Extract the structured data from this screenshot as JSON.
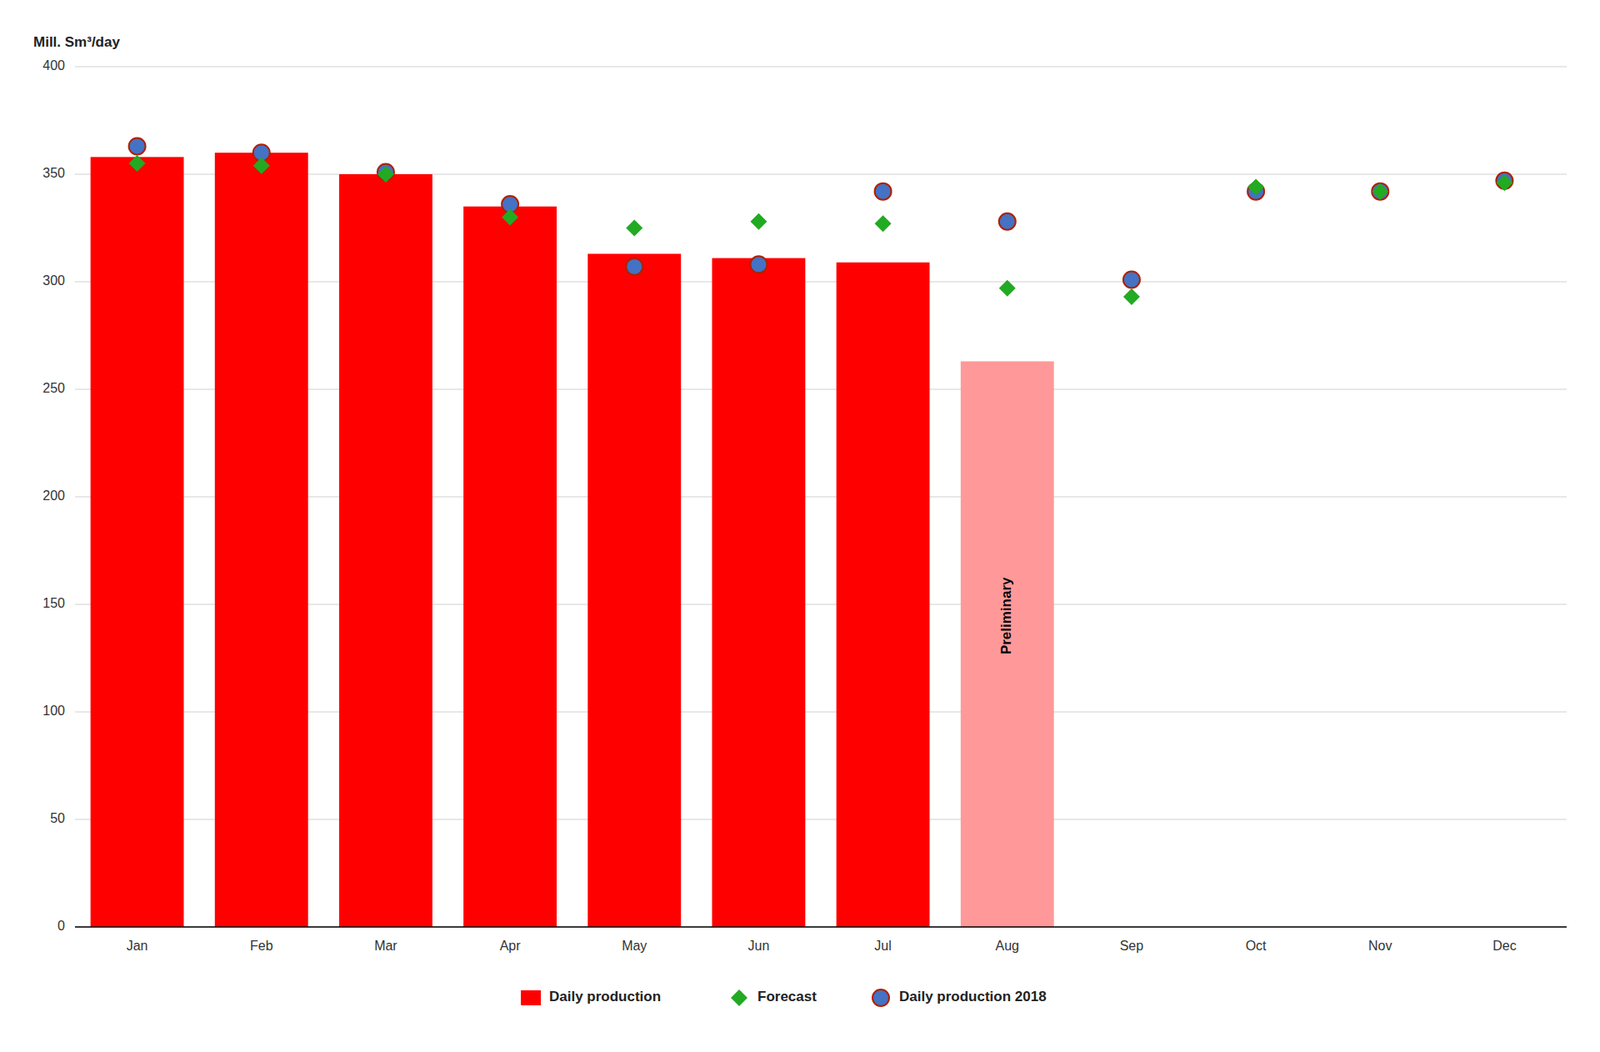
{
  "chart_data": {
    "type": "bar",
    "ylabel": "Mill. Sm³/day",
    "categories": [
      "Jan",
      "Feb",
      "Mar",
      "Apr",
      "May",
      "Jun",
      "Jul",
      "Aug",
      "Sep",
      "Oct",
      "Nov",
      "Dec"
    ],
    "series": [
      {
        "name": "Daily production",
        "type": "bar",
        "color": "#FF0000",
        "colors": [
          "#FF0000",
          "#FF0000",
          "#FF0000",
          "#FF0000",
          "#FF0000",
          "#FF0000",
          "#FF0000",
          "#FF9999",
          null,
          null,
          null,
          null
        ],
        "values": [
          358,
          360,
          350,
          335,
          313,
          311,
          309,
          263,
          null,
          null,
          null,
          null
        ]
      },
      {
        "name": "Forecast",
        "type": "scatter",
        "marker": "diamond",
        "color": "#22AA22",
        "values": [
          355,
          354,
          350,
          330,
          325,
          328,
          327,
          297,
          293,
          344,
          342,
          346
        ]
      },
      {
        "name": "Daily production 2018",
        "type": "scatter",
        "marker": "circle",
        "color": "#4472C4",
        "values": [
          363,
          360,
          351,
          336,
          307,
          308,
          342,
          328,
          301,
          342,
          342,
          347
        ]
      }
    ],
    "annotations": [
      {
        "text": "Preliminary",
        "category": "Aug"
      }
    ],
    "ylim": [
      0,
      400
    ],
    "yticks": [
      0,
      50,
      100,
      150,
      200,
      250,
      300,
      350,
      400
    ],
    "grid": true,
    "legend": "bottom"
  }
}
